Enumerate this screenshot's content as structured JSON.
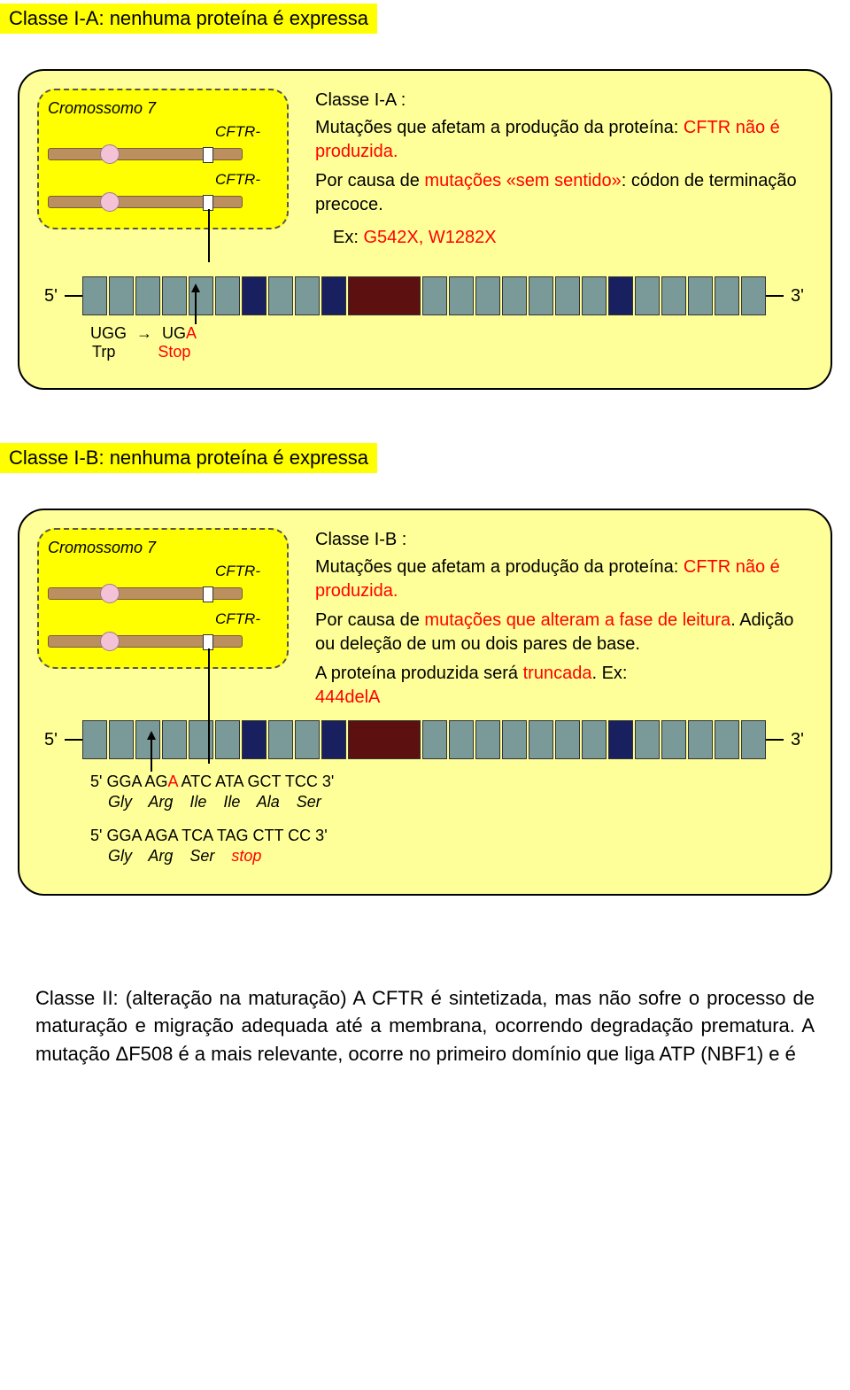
{
  "sectionA": {
    "title": "Classe I-A: nenhuma proteína é expressa",
    "chromo": {
      "label": "Cromossomo 7",
      "cftr": "CFTR-"
    },
    "desc": {
      "heading": "Classe I-A :",
      "line1a": "Mutações que afetam a produção da proteína: ",
      "line1b": "CFTR não é produzida.",
      "line2a": "Por causa de ",
      "line2b": "mutações «sem sentido»",
      "line2c": ": códon de terminação precoce.",
      "exPrefix": "Ex: ",
      "exVal": "G542X, W1282X"
    },
    "transcript": {
      "fivePrime": "5'",
      "threePrime": "3'",
      "exons": [
        "gray",
        "gray",
        "gray",
        "gray",
        "gray",
        "gray",
        "navy",
        "gray",
        "gray",
        "navy",
        "darkred",
        "gray",
        "gray",
        "gray",
        "gray",
        "gray",
        "gray",
        "gray",
        "navy",
        "gray",
        "gray",
        "gray",
        "gray",
        "gray"
      ]
    },
    "codon": {
      "left1": "UGG",
      "left2": "Trp",
      "arrowGlyph": "→",
      "right1a": "UG",
      "right1b": "A",
      "right2": "Stop"
    }
  },
  "sectionB": {
    "title": "Classe I-B: nenhuma proteína é expressa",
    "chromo": {
      "label": "Cromossomo 7",
      "cftr": "CFTR-"
    },
    "desc": {
      "heading": "Classe I-B :",
      "line1a": "Mutações que afetam a produção da proteína: ",
      "line1b": "CFTR não é produzida.",
      "line2a": "Por causa de ",
      "line2b": "mutações que alteram a fase de leitura",
      "line2c": ". Adição ou deleção de um ou dois pares de base.",
      "line3a": "A proteína produzida será ",
      "line3b": "truncada",
      "line3c": ". Ex: ",
      "exVal": "444delA"
    },
    "transcript": {
      "fivePrime": "5'",
      "threePrime": "3'",
      "exons": [
        "gray",
        "gray",
        "gray",
        "gray",
        "gray",
        "gray",
        "navy",
        "gray",
        "gray",
        "navy",
        "darkred",
        "gray",
        "gray",
        "gray",
        "gray",
        "gray",
        "gray",
        "gray",
        "navy",
        "gray",
        "gray",
        "gray",
        "gray",
        "gray"
      ]
    },
    "seq1": {
      "dna": "5' GGA AGA ATC ATA GCT TCC 3'",
      "dnaA_before": "5' GGA AG",
      "dnaA_red": "A",
      "dnaA_after": " ATC ATA GCT TCC 3'",
      "aa": "Gly  Arg  Ile  Ile  Ala  Ser",
      "aaItems": [
        "Gly",
        "Arg",
        "Ile",
        "Ile",
        "Ala",
        "Ser"
      ]
    },
    "seq2": {
      "dna": "5' GGA AGA TCA TAG CTT CC 3'",
      "aaPrefix": "Gly  Arg  Ser  ",
      "aaStop": "stop",
      "aaItems": [
        "Gly",
        "Arg",
        "Ser"
      ]
    }
  },
  "bodyText": {
    "p1": "Classe II: (alteração na maturação) A CFTR é sintetizada, mas não sofre o processo de maturação e migração adequada até a membrana, ocorrendo degradação prematura. A mutação ΔF508 é a mais relevante, ocorre no primeiro domínio que liga ATP (NBF1) e é"
  }
}
